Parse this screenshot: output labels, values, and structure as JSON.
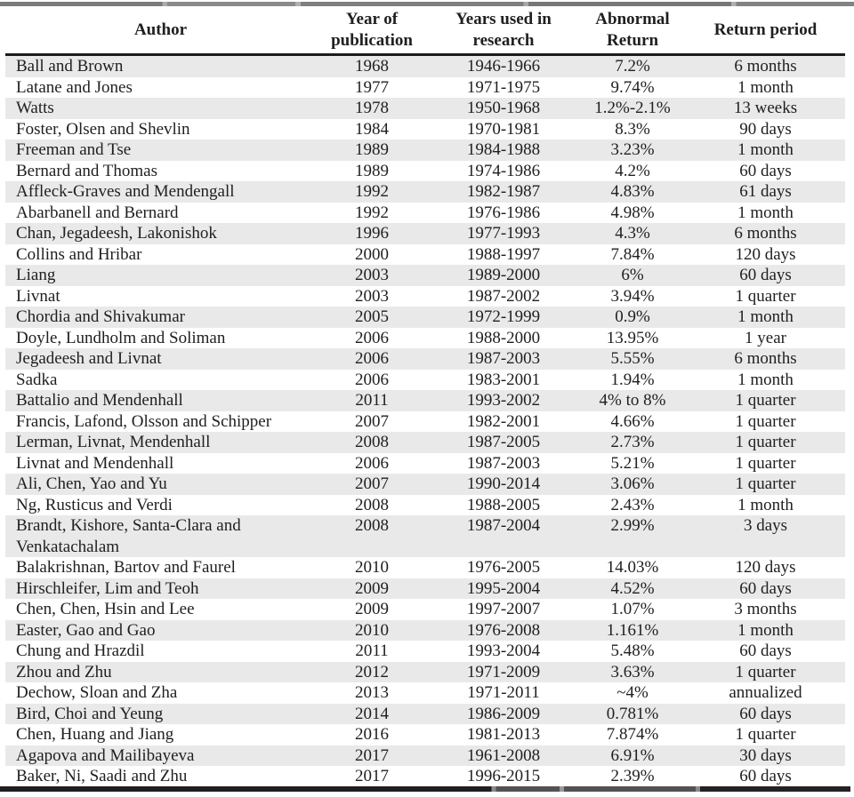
{
  "table": {
    "headers": [
      "Author",
      "Year of\npublication",
      "Years used in\nresearch",
      "Abnormal\nReturn",
      "Return period"
    ],
    "rows": [
      {
        "author": "Ball and Brown",
        "year_of_publication": "1968",
        "years_used_in_research": "1946-1966",
        "abnormal_return": "7.2%",
        "return_period": "6 months"
      },
      {
        "author": "Latane and Jones",
        "year_of_publication": "1977",
        "years_used_in_research": "1971-1975",
        "abnormal_return": "9.74%",
        "return_period": "1 month"
      },
      {
        "author": "Watts",
        "year_of_publication": "1978",
        "years_used_in_research": "1950-1968",
        "abnormal_return": "1.2%-2.1%",
        "return_period": "13 weeks"
      },
      {
        "author": "Foster, Olsen and Shevlin",
        "year_of_publication": "1984",
        "years_used_in_research": "1970-1981",
        "abnormal_return": "8.3%",
        "return_period": "90 days"
      },
      {
        "author": "Freeman and Tse",
        "year_of_publication": "1989",
        "years_used_in_research": "1984-1988",
        "abnormal_return": "3.23%",
        "return_period": "1 month"
      },
      {
        "author": "Bernard and Thomas",
        "year_of_publication": "1989",
        "years_used_in_research": "1974-1986",
        "abnormal_return": "4.2%",
        "return_period": "60 days"
      },
      {
        "author": "Affleck-Graves and Mendengall",
        "year_of_publication": "1992",
        "years_used_in_research": "1982-1987",
        "abnormal_return": "4.83%",
        "return_period": "61 days"
      },
      {
        "author": "Abarbanell and Bernard",
        "year_of_publication": "1992",
        "years_used_in_research": "1976-1986",
        "abnormal_return": "4.98%",
        "return_period": "1 month"
      },
      {
        "author": "Chan, Jegadeesh, Lakonishok",
        "year_of_publication": "1996",
        "years_used_in_research": "1977-1993",
        "abnormal_return": "4.3%",
        "return_period": "6 months"
      },
      {
        "author": "Collins and Hribar",
        "year_of_publication": "2000",
        "years_used_in_research": "1988-1997",
        "abnormal_return": "7.84%",
        "return_period": "120 days"
      },
      {
        "author": "Liang",
        "year_of_publication": "2003",
        "years_used_in_research": "1989-2000",
        "abnormal_return": "6%",
        "return_period": "60 days"
      },
      {
        "author": "Livnat",
        "year_of_publication": "2003",
        "years_used_in_research": "1987-2002",
        "abnormal_return": "3.94%",
        "return_period": "1 quarter"
      },
      {
        "author": "Chordia and Shivakumar",
        "year_of_publication": "2005",
        "years_used_in_research": "1972-1999",
        "abnormal_return": "0.9%",
        "return_period": "1 month"
      },
      {
        "author": "Doyle, Lundholm and Soliman",
        "year_of_publication": "2006",
        "years_used_in_research": "1988-2000",
        "abnormal_return": "13.95%",
        "return_period": "1 year"
      },
      {
        "author": "Jegadeesh and Livnat",
        "year_of_publication": "2006",
        "years_used_in_research": "1987-2003",
        "abnormal_return": "5.55%",
        "return_period": "6 months"
      },
      {
        "author": "Sadka",
        "year_of_publication": "2006",
        "years_used_in_research": "1983-2001",
        "abnormal_return": "1.94%",
        "return_period": "1 month"
      },
      {
        "author": "Battalio and Mendenhall",
        "year_of_publication": "2011",
        "years_used_in_research": "1993-2002",
        "abnormal_return": "4% to 8%",
        "return_period": "1 quarter"
      },
      {
        "author": "Francis, Lafond, Olsson and Schipper",
        "year_of_publication": "2007",
        "years_used_in_research": "1982-2001",
        "abnormal_return": "4.66%",
        "return_period": "1 quarter"
      },
      {
        "author": "Lerman, Livnat, Mendenhall",
        "year_of_publication": "2008",
        "years_used_in_research": "1987-2005",
        "abnormal_return": "2.73%",
        "return_period": "1 quarter"
      },
      {
        "author": "Livnat and Mendenhall",
        "year_of_publication": "2006",
        "years_used_in_research": "1987-2003",
        "abnormal_return": "5.21%",
        "return_period": "1 quarter"
      },
      {
        "author": "Ali, Chen, Yao and Yu",
        "year_of_publication": "2007",
        "years_used_in_research": "1990-2014",
        "abnormal_return": "3.06%",
        "return_period": "1 quarter"
      },
      {
        "author": "Ng, Rusticus and Verdi",
        "year_of_publication": "2008",
        "years_used_in_research": "1988-2005",
        "abnormal_return": "2.43%",
        "return_period": "1 month"
      },
      {
        "author": "Brandt, Kishore, Santa-Clara and\nVenkatachalam",
        "year_of_publication": "2008",
        "years_used_in_research": "1987-2004",
        "abnormal_return": "2.99%",
        "return_period": "3 days"
      },
      {
        "author": "Balakrishnan, Bartov and Faurel",
        "year_of_publication": "2010",
        "years_used_in_research": "1976-2005",
        "abnormal_return": "14.03%",
        "return_period": "120 days"
      },
      {
        "author": "Hirschleifer, Lim and Teoh",
        "year_of_publication": "2009",
        "years_used_in_research": "1995-2004",
        "abnormal_return": "4.52%",
        "return_period": "60 days"
      },
      {
        "author": "Chen, Chen, Hsin and Lee",
        "year_of_publication": "2009",
        "years_used_in_research": "1997-2007",
        "abnormal_return": "1.07%",
        "return_period": "3 months"
      },
      {
        "author": "Easter, Gao and Gao",
        "year_of_publication": "2010",
        "years_used_in_research": "1976-2008",
        "abnormal_return": "1.161%",
        "return_period": "1 month"
      },
      {
        "author": "Chung and Hrazdil",
        "year_of_publication": "2011",
        "years_used_in_research": "1993-2004",
        "abnormal_return": "5.48%",
        "return_period": "60 days"
      },
      {
        "author": "Zhou and Zhu",
        "year_of_publication": "2012",
        "years_used_in_research": "1971-2009",
        "abnormal_return": "3.63%",
        "return_period": "1 quarter"
      },
      {
        "author": "Dechow, Sloan and Zha",
        "year_of_publication": "2013",
        "years_used_in_research": "1971-2011",
        "abnormal_return": "~4%",
        "return_period": "annualized"
      },
      {
        "author": "Bird, Choi and Yeung",
        "year_of_publication": "2014",
        "years_used_in_research": "1986-2009",
        "abnormal_return": "0.781%",
        "return_period": "60 days"
      },
      {
        "author": "Chen, Huang and Jiang",
        "year_of_publication": "2016",
        "years_used_in_research": "1981-2013",
        "abnormal_return": "7.874%",
        "return_period": "1 quarter"
      },
      {
        "author": "Agapova and Mailibayeva",
        "year_of_publication": "2017",
        "years_used_in_research": "1961-2008",
        "abnormal_return": "6.91%",
        "return_period": "30 days"
      },
      {
        "author": "Baker, Ni, Saadi and Zhu",
        "year_of_publication": "2017",
        "years_used_in_research": "1996-2015",
        "abnormal_return": "2.39%",
        "return_period": "60 days"
      }
    ]
  },
  "colors": {
    "stripe": "#e9e9e9",
    "text": "#1f1f1f",
    "header_rule": "#1c1c1c",
    "top_bar_gray": "#7d7d7d"
  }
}
